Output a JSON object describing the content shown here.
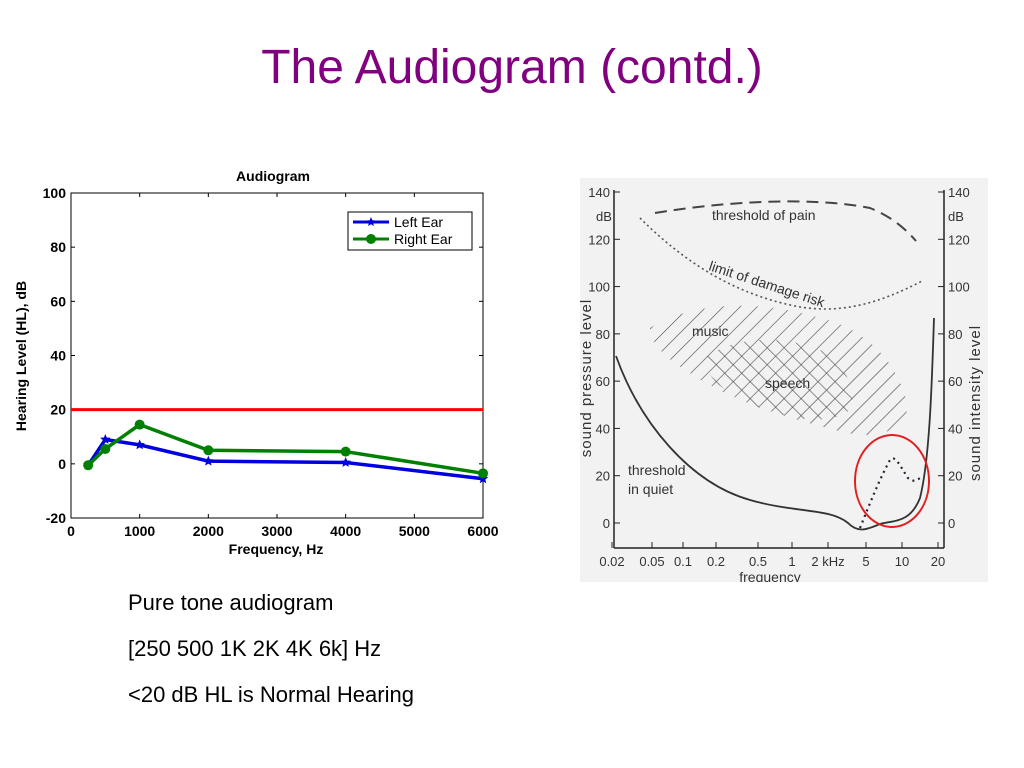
{
  "slide": {
    "title": "The Audiogram (contd.)",
    "captions": [
      "Pure tone audiogram",
      "[250 500 1K 2K 4K 6k] Hz",
      "<20 dB HL is Normal Hearing"
    ]
  },
  "chart_data": [
    {
      "type": "line",
      "title": "Audiogram",
      "xlabel": "Frequency,  Hz",
      "ylabel": "Hearing Level (HL), dB",
      "xlim": [
        0,
        6000
      ],
      "ylim": [
        -20,
        100
      ],
      "xticks": [
        0,
        1000,
        2000,
        3000,
        4000,
        5000,
        6000
      ],
      "yticks": [
        -20,
        0,
        20,
        40,
        60,
        80,
        100
      ],
      "grid": false,
      "legend_position": "top-right",
      "threshold": {
        "y": 20,
        "color": "#ff0000"
      },
      "series": [
        {
          "name": "Left Ear",
          "color": "#0000e0",
          "marker": "star",
          "x": [
            250,
            500,
            1000,
            2000,
            4000,
            6000
          ],
          "y": [
            -0.5,
            9,
            7,
            1,
            0.5,
            -5.5
          ]
        },
        {
          "name": "Right Ear",
          "color": "#008000",
          "marker": "circle",
          "x": [
            250,
            500,
            1000,
            2000,
            4000,
            6000
          ],
          "y": [
            -0.5,
            5.5,
            14.5,
            5,
            4.5,
            -3.5
          ]
        }
      ]
    },
    {
      "type": "area",
      "xlabel": "frequency",
      "ylabel_left": "sound pressure level",
      "ylabel_right": "sound intensity level",
      "unit": "dB",
      "yticks": [
        0,
        20,
        40,
        60,
        80,
        100,
        120,
        140
      ],
      "xtick_labels": [
        "0.02",
        "0.05",
        "0.1",
        "0.2",
        "0.5",
        "1",
        "2 kHz",
        "5",
        "10",
        "20"
      ],
      "x_scale": "log",
      "regions": [
        {
          "label": "threshold of pain"
        },
        {
          "label": "limit of damage risk"
        },
        {
          "label": "music"
        },
        {
          "label": "speech"
        },
        {
          "label_lines": [
            "threshold",
            "in quiet"
          ]
        }
      ],
      "highlight_color": "#e02020"
    }
  ]
}
